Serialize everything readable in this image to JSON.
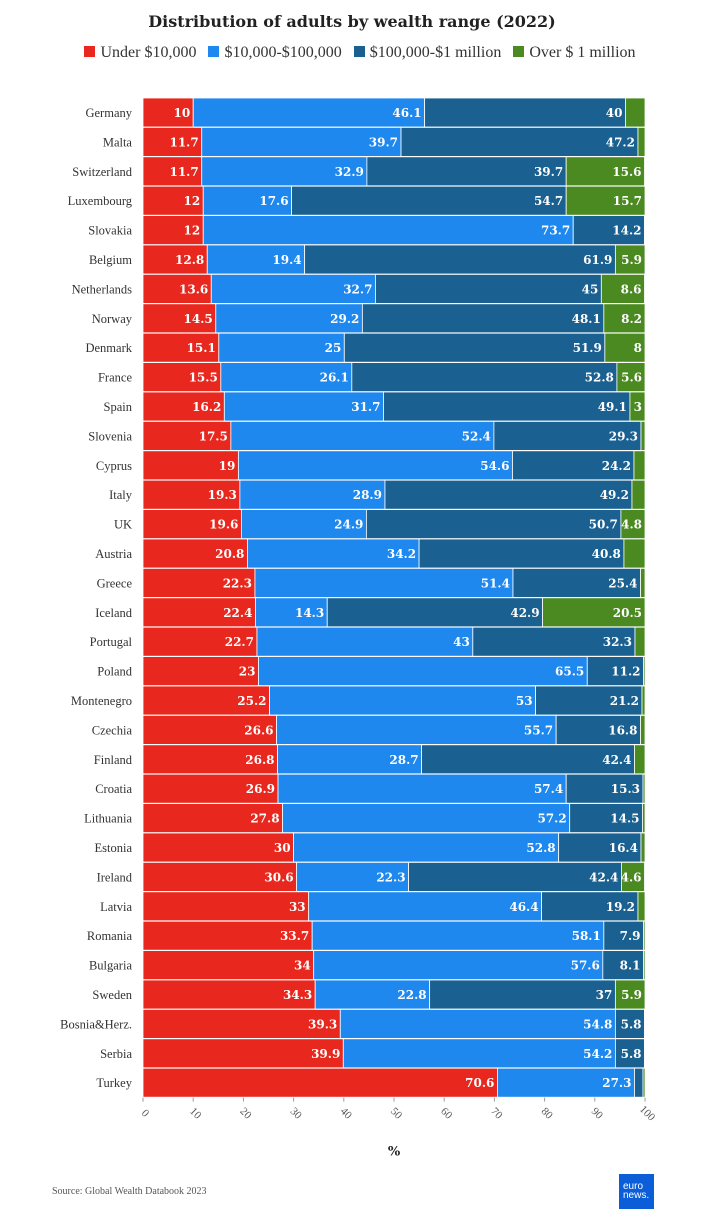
{
  "chart_data": {
    "type": "bar",
    "orientation": "horizontal",
    "stacked": true,
    "title": "Distribution of adults by wealth range (2022)",
    "xlabel": "%",
    "ylabel": "",
    "xlim": [
      0,
      100
    ],
    "xticks": [
      "0",
      "10",
      "20",
      "30",
      "40",
      "50",
      "60",
      "70",
      "80",
      "90",
      "100"
    ],
    "legend_position": "top",
    "categories": [
      "Germany",
      "Malta",
      "Switzerland",
      "Luxembourg",
      "Slovakia",
      "Belgium",
      "Netherlands",
      "Norway",
      "Denmark",
      "France",
      "Spain",
      "Slovenia",
      "Cyprus",
      "Italy",
      "UK",
      "Austria",
      "Greece",
      "Iceland",
      "Portugal",
      "Poland",
      "Montenegro",
      "Czechia",
      "Finland",
      "Croatia",
      "Lithuania",
      "Estonia",
      "Ireland",
      "Latvia",
      "Romania",
      "Bulgaria",
      "Sweden",
      "Bosnia&Herz.",
      "Serbia",
      "Turkey"
    ],
    "series": [
      {
        "name": "Under $10,000",
        "color": "#e8281e",
        "values": [
          10,
          11.7,
          11.7,
          12,
          12,
          12.8,
          13.6,
          14.5,
          15.1,
          15.5,
          16.2,
          17.5,
          19,
          19.3,
          19.6,
          20.8,
          22.3,
          22.4,
          22.7,
          23,
          25.2,
          26.6,
          26.8,
          26.9,
          27.8,
          30,
          30.6,
          33,
          33.7,
          34,
          34.3,
          39.3,
          39.9,
          70.6
        ],
        "labels": [
          "10",
          "11.7",
          "11.7",
          "12",
          "12",
          "12.8",
          "13.6",
          "14.5",
          "15.1",
          "15.5",
          "16.2",
          "17.5",
          "19",
          "19.3",
          "19.6",
          "20.8",
          "22.3",
          "22.4",
          "22.7",
          "23",
          "25.2",
          "26.6",
          "26.8",
          "26.9",
          "27.8",
          "30",
          "30.6",
          "33",
          "33.7",
          "34",
          "34.3",
          "39.3",
          "39.9",
          "70.6"
        ]
      },
      {
        "name": "$10,000-$100,000",
        "color": "#1e88ef",
        "values": [
          46.1,
          39.7,
          32.9,
          17.6,
          73.7,
          19.4,
          32.7,
          29.2,
          25,
          26.1,
          31.7,
          52.4,
          54.6,
          28.9,
          24.9,
          34.2,
          51.4,
          14.3,
          43,
          65.5,
          53,
          55.7,
          28.7,
          57.4,
          57.2,
          52.8,
          22.3,
          46.4,
          58.1,
          57.6,
          22.8,
          54.8,
          54.2,
          27.3
        ],
        "labels": [
          "46.1",
          "39.7",
          "32.9",
          "17.6",
          "73.7",
          "19.4",
          "32.7",
          "29.2",
          "25",
          "26.1",
          "31.7",
          "52.4",
          "54.6",
          "28.9",
          "24.9",
          "34.2",
          "51.4",
          "14.3",
          "43",
          "65.5",
          "53",
          "55.7",
          "28.7",
          "57.4",
          "57.2",
          "52.8",
          "22.3",
          "46.4",
          "58.1",
          "57.6",
          "22.8",
          "54.8",
          "54.2",
          "27.3"
        ]
      },
      {
        "name": "$100,000-$1 million",
        "color": "#1a6090",
        "values": [
          40,
          47.2,
          39.7,
          54.7,
          14.2,
          61.9,
          45,
          48.1,
          51.9,
          52.8,
          49.1,
          29.3,
          24.2,
          49.2,
          50.7,
          40.8,
          25.4,
          42.9,
          32.3,
          11.2,
          21.2,
          16.8,
          42.4,
          15.3,
          14.5,
          16.4,
          42.4,
          19.2,
          7.9,
          8.1,
          37,
          5.8,
          5.8,
          1.7
        ],
        "labels": [
          "40",
          "47.2",
          "39.7",
          "54.7",
          "14.2",
          "61.9",
          "45",
          "48.1",
          "51.9",
          "52.8",
          "49.1",
          "29.3",
          "24.2",
          "49.2",
          "50.7",
          "40.8",
          "25.4",
          "42.9",
          "32.3",
          "11.2",
          "21.2",
          "16.8",
          "42.4",
          "15.3",
          "14.5",
          "16.4",
          "42.4",
          "19.2",
          "7.9",
          "8.1",
          "37",
          "5.8",
          "5.8",
          ""
        ]
      },
      {
        "name": "Over $ 1 million",
        "color": "#4a8a20",
        "values": [
          3.9,
          1.4,
          15.6,
          15.7,
          0.1,
          5.9,
          8.6,
          8.2,
          8,
          5.6,
          3,
          0.8,
          2.2,
          2.6,
          4.8,
          4.2,
          0.9,
          20.5,
          2,
          0.3,
          0.6,
          0.9,
          2.1,
          0.4,
          0.5,
          0.8,
          4.6,
          1.4,
          0.3,
          0.3,
          5.9,
          0.1,
          0.1,
          0.4
        ],
        "labels": [
          "",
          "",
          "15.6",
          "15.7",
          "",
          "5.9",
          "8.6",
          "8.2",
          "8",
          "5.6",
          "3",
          "",
          "",
          "",
          "4.8",
          "",
          "",
          "20.5",
          "",
          "",
          "",
          "",
          "",
          "",
          "",
          "",
          "4.6",
          "",
          "",
          "",
          "5.9",
          "",
          "",
          ""
        ]
      }
    ]
  },
  "source": "Source: Global Wealth Databook 2023",
  "logo": {
    "line1": "euro",
    "line2": "news."
  }
}
